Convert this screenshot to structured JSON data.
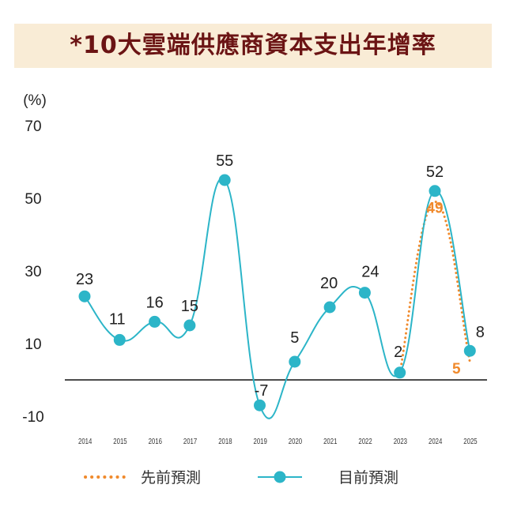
{
  "chart_data": {
    "type": "line",
    "title": "*10大雲端供應商資本支出年增率",
    "y_unit": "(%)",
    "ylim": [
      -10,
      70
    ],
    "y_ticks": [
      70,
      50,
      30,
      10,
      -10
    ],
    "categories": [
      "2014",
      "2015",
      "2016",
      "2017",
      "2018",
      "2019",
      "2020",
      "2021",
      "2022",
      "2023",
      "2024",
      "2025"
    ],
    "series": [
      {
        "name": "目前預測",
        "values": [
          23,
          11,
          16,
          15,
          55,
          -7,
          5,
          20,
          24,
          2,
          52,
          8
        ],
        "labels": [
          "23",
          "11",
          "16",
          "15",
          "55",
          "-7",
          "5",
          "20",
          "24",
          "2",
          "52",
          "8"
        ],
        "color": "#2cb5c8",
        "style": "solid"
      },
      {
        "name": "先前預測",
        "x": [
          "2023",
          "2024",
          "2025"
        ],
        "values": [
          2,
          49,
          5
        ],
        "labels": [
          "",
          "49",
          "5"
        ],
        "color": "#f08a2c",
        "style": "dotted"
      }
    ],
    "legend": "bottom",
    "grid": false
  }
}
